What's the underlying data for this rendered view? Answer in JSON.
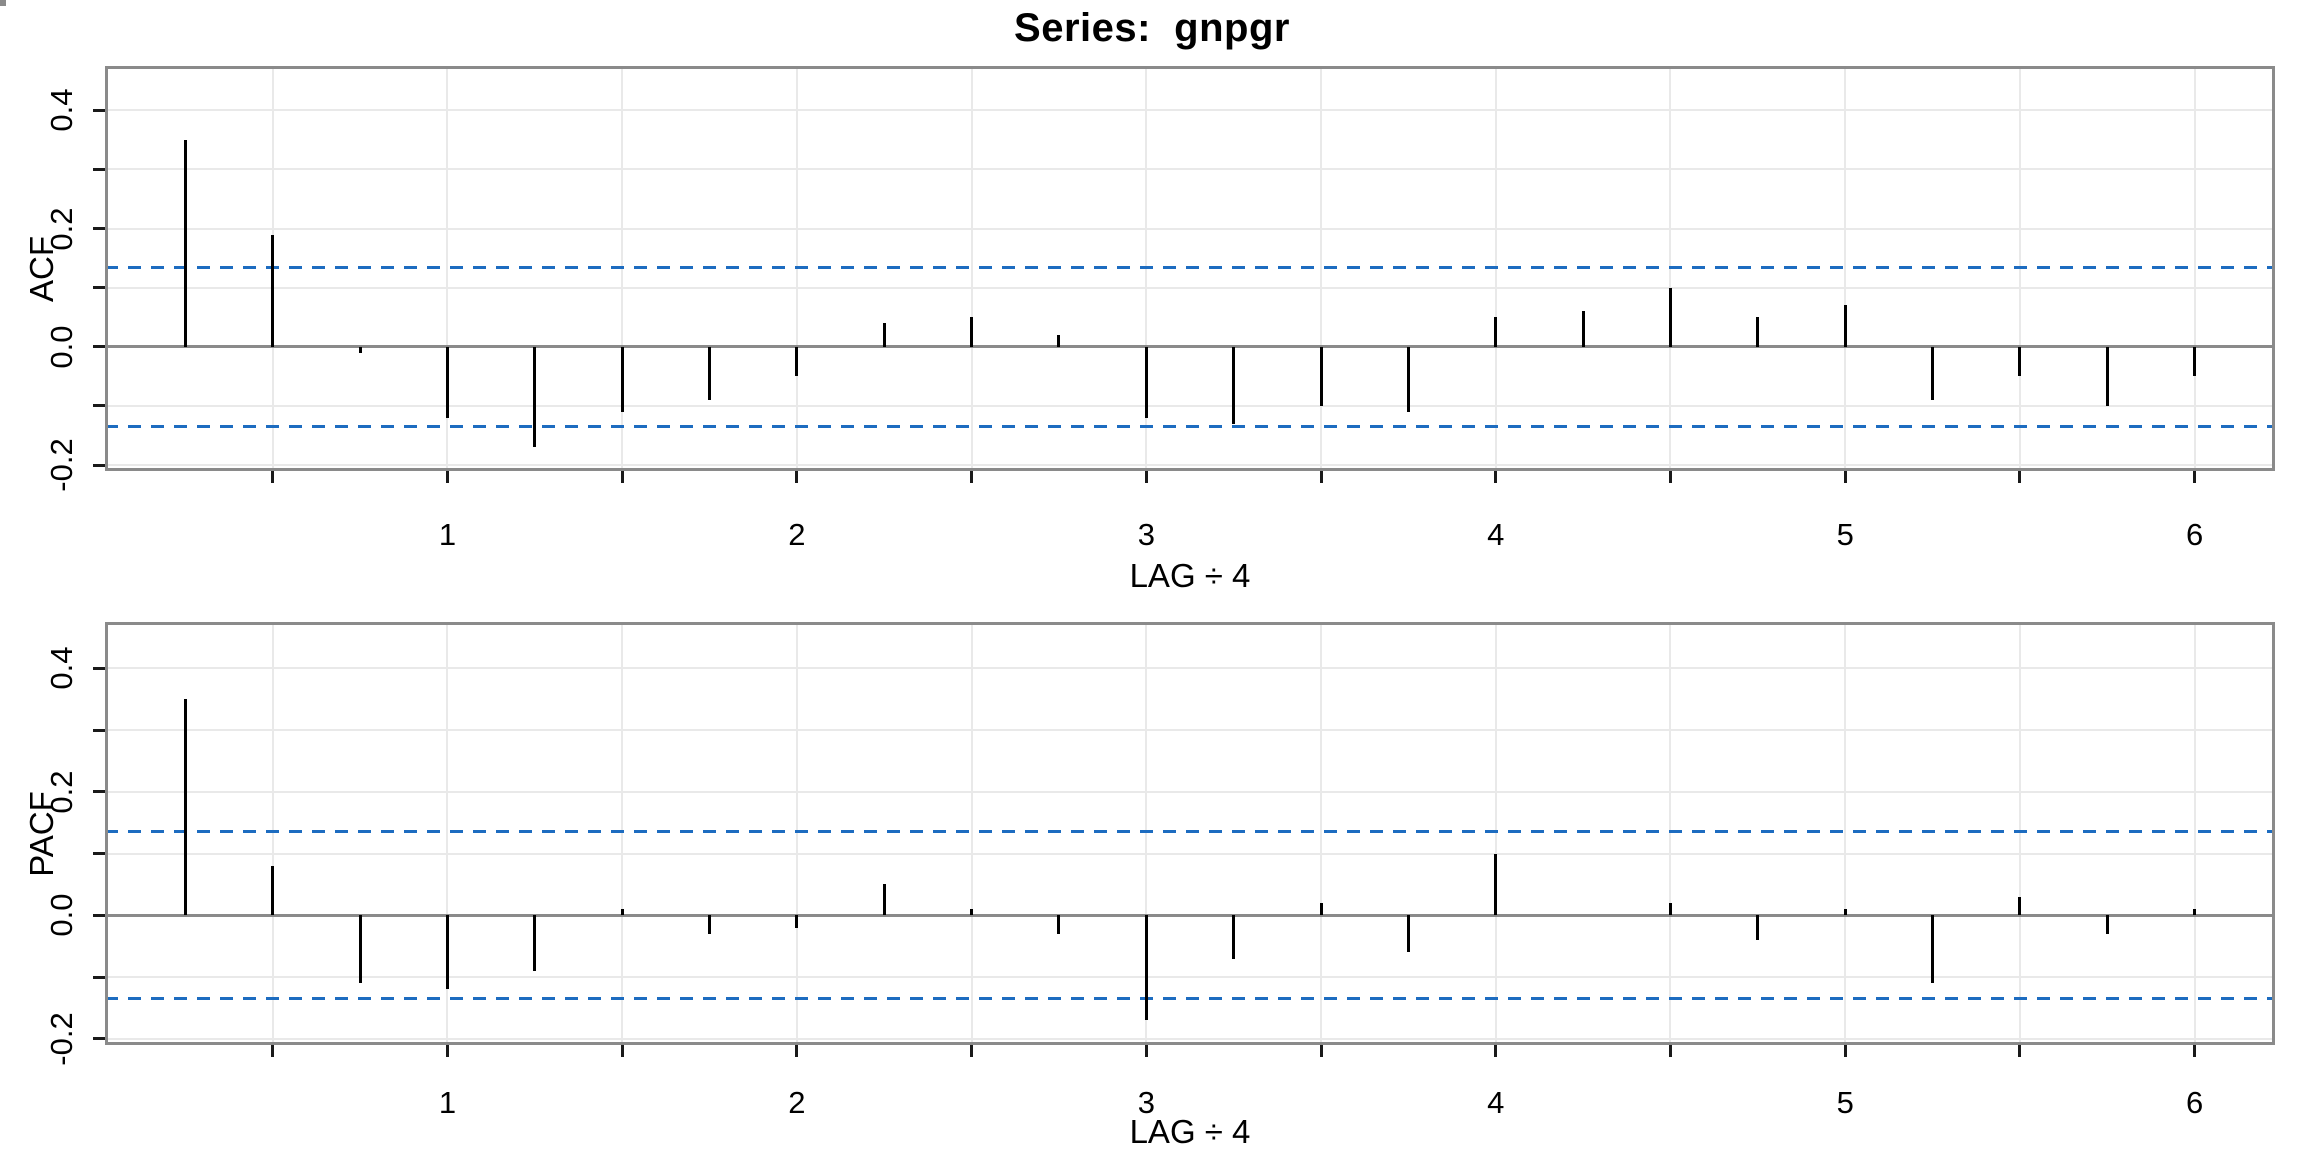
{
  "title": "Series:  gnpgr",
  "colors": {
    "bar": "#000000",
    "confidence_band": "#1d6cc0",
    "grid": "#e9e9e9",
    "axis": "#8a8a8a",
    "background": "#ffffff",
    "text": "#000000"
  },
  "chart_data": [
    {
      "type": "bar",
      "name": "acf",
      "title": "Series:  gnpgr",
      "ylabel": "ACF",
      "xlabel": "LAG ÷ 4",
      "grid": true,
      "xlim": [
        0.02,
        6.23
      ],
      "ylim": [
        -0.21,
        0.475
      ],
      "x_ticks_labeled": [
        1,
        2,
        3,
        4,
        5,
        6
      ],
      "x_tick_step": 0.5,
      "y_ticks_labeled": [
        0.4,
        0.2,
        0.0,
        -0.2
      ],
      "y_tick_labels": [
        "0.4",
        "0.2",
        "0.0",
        "-0.2"
      ],
      "y_tick_step": 0.1,
      "confidence_bands": {
        "upper": 0.135,
        "lower": -0.135
      },
      "x": [
        0.25,
        0.5,
        0.75,
        1.0,
        1.25,
        1.5,
        1.75,
        2.0,
        2.25,
        2.5,
        2.75,
        3.0,
        3.25,
        3.5,
        3.75,
        4.0,
        4.25,
        4.5,
        4.75,
        5.0,
        5.25,
        5.5,
        5.75,
        6.0
      ],
      "values": [
        0.35,
        0.19,
        -0.01,
        -0.12,
        -0.17,
        -0.11,
        -0.09,
        -0.05,
        0.04,
        0.05,
        0.02,
        -0.12,
        -0.13,
        -0.1,
        -0.11,
        0.05,
        0.06,
        0.1,
        0.05,
        0.07,
        -0.09,
        -0.05,
        -0.1,
        -0.05
      ]
    },
    {
      "type": "bar",
      "name": "pacf",
      "ylabel": "PACF",
      "xlabel": "LAG ÷ 4",
      "grid": true,
      "xlim": [
        0.02,
        6.23
      ],
      "ylim": [
        -0.21,
        0.475
      ],
      "x_ticks_labeled": [
        1,
        2,
        3,
        4,
        5,
        6
      ],
      "x_tick_step": 0.5,
      "y_ticks_labeled": [
        0.4,
        0.2,
        0.0,
        -0.2
      ],
      "y_tick_labels": [
        "0.4",
        "0.2",
        "0.0",
        "-0.2"
      ],
      "y_tick_step": 0.1,
      "confidence_bands": {
        "upper": 0.135,
        "lower": -0.135
      },
      "x": [
        0.25,
        0.5,
        0.75,
        1.0,
        1.25,
        1.5,
        1.75,
        2.0,
        2.25,
        2.5,
        2.75,
        3.0,
        3.25,
        3.5,
        3.75,
        4.0,
        4.25,
        4.5,
        4.75,
        5.0,
        5.25,
        5.5,
        5.75,
        6.0
      ],
      "values": [
        0.35,
        0.08,
        -0.11,
        -0.12,
        -0.09,
        0.01,
        -0.03,
        -0.02,
        0.05,
        0.01,
        -0.03,
        -0.17,
        -0.07,
        0.02,
        -0.06,
        0.1,
        0.0,
        0.02,
        -0.04,
        0.01,
        -0.11,
        0.03,
        -0.03,
        0.01
      ]
    }
  ]
}
